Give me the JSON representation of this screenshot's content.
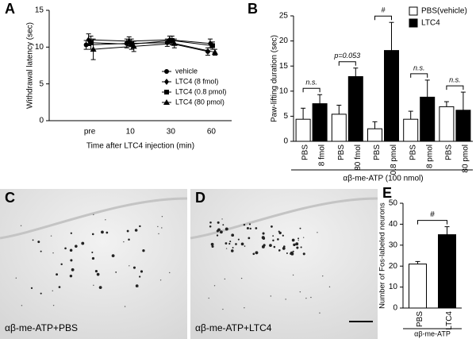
{
  "chart_data": [
    {
      "type": "line",
      "panel_label": "A",
      "y_label": "Withdrawal latency (sec)",
      "x_label": "Time after LTC4 injection (min)",
      "categories": [
        "pre",
        "10",
        "30",
        "60"
      ],
      "ylim": [
        0,
        15
      ],
      "yticks": [
        0,
        5,
        10,
        15
      ],
      "legend": "lower right",
      "series": [
        {
          "name": "vehicle",
          "marker": "circle",
          "color": "#000000",
          "values": [
            10.3,
            10.5,
            10.6,
            9.4
          ],
          "errors": [
            0.6,
            0.6,
            0.5,
            0.5
          ]
        },
        {
          "name": "LTC4 (8 fmol)",
          "marker": "diamond",
          "color": "#000000",
          "values": [
            11.0,
            10.8,
            11.0,
            10.5
          ],
          "errors": [
            0.8,
            0.6,
            0.5,
            0.6
          ]
        },
        {
          "name": "LTC4 (0.8 pmol)",
          "marker": "square",
          "color": "#000000",
          "values": [
            10.6,
            10.4,
            10.9,
            10.2
          ],
          "errors": [
            0.9,
            0.7,
            0.6,
            0.5
          ]
        },
        {
          "name": "LTC4 (80 pmol)",
          "marker": "triangle",
          "color": "#000000",
          "values": [
            9.7,
            10.1,
            10.5,
            9.3
          ],
          "errors": [
            1.4,
            0.7,
            0.6,
            0.4
          ]
        }
      ]
    },
    {
      "type": "bar",
      "panel_label": "B",
      "y_label": "Paw-lifting duration (sec)",
      "x_label": "αβ-me-ATP (100 nmol)",
      "categories": [
        "8 fmol",
        "80 fmol",
        "0.8 pmol",
        "8 pmol",
        "80 pmol"
      ],
      "bracket_labels": [
        "n.s.",
        "p=0.053",
        "#",
        "n.s.",
        "n.s."
      ],
      "ylim": [
        0,
        25
      ],
      "yticks": [
        0,
        5,
        10,
        15,
        20,
        25
      ],
      "legend": "upper right",
      "series": [
        {
          "name": "PBS(vehicle)",
          "tick_label": "PBS",
          "color": "#ffffff",
          "values": [
            4.4,
            5.4,
            2.5,
            4.4,
            6.9
          ],
          "errors": [
            2.2,
            1.8,
            1.4,
            1.6,
            1.0
          ]
        },
        {
          "name": "LTC4",
          "color": "#000000",
          "values": [
            7.5,
            12.9,
            18.1,
            8.8,
            6.2
          ],
          "errors": [
            1.8,
            1.7,
            5.6,
            3.4,
            3.6
          ]
        }
      ]
    },
    {
      "type": "bar",
      "panel_label": "E",
      "y_label": "Number of Fos-labeled neurons",
      "x_label": "αβ-me-ATP",
      "categories": [
        "PBS",
        "LTC4"
      ],
      "bracket_label": "#",
      "colors": [
        "#ffffff",
        "#000000"
      ],
      "values": [
        21,
        35
      ],
      "errors": [
        1.2,
        3.8
      ],
      "ylim": [
        0,
        50
      ],
      "yticks": [
        0,
        10,
        20,
        30,
        40,
        50
      ]
    }
  ],
  "images": [
    {
      "panel_label": "C",
      "caption": "αβ-me-ATP+PBS"
    },
    {
      "panel_label": "D",
      "caption": "αβ-me-ATP+LTC4"
    }
  ]
}
